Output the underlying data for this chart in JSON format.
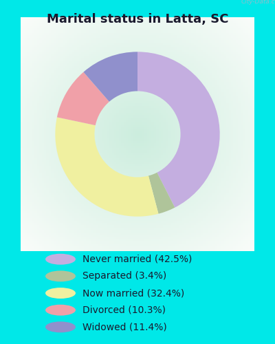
{
  "title": "Marital status in Latta, SC",
  "slices": [
    {
      "label": "Never married (42.5%)",
      "value": 42.5,
      "color": "#c4aee0"
    },
    {
      "label": "Separated (3.4%)",
      "value": 3.4,
      "color": "#afc49a"
    },
    {
      "label": "Now married (32.4%)",
      "value": 32.4,
      "color": "#f0f0a0"
    },
    {
      "label": "Divorced (10.3%)",
      "value": 10.3,
      "color": "#f0a0a8"
    },
    {
      "label": "Widowed (11.4%)",
      "value": 11.4,
      "color": "#9090cc"
    }
  ],
  "background_outer": "#00e8e8",
  "background_chart_color1": "#cce8d8",
  "background_chart_color2": "#e8f4ee",
  "title_fontsize": 13,
  "watermark": "City-Data.com",
  "start_angle": 90,
  "legend_fontsize": 10
}
